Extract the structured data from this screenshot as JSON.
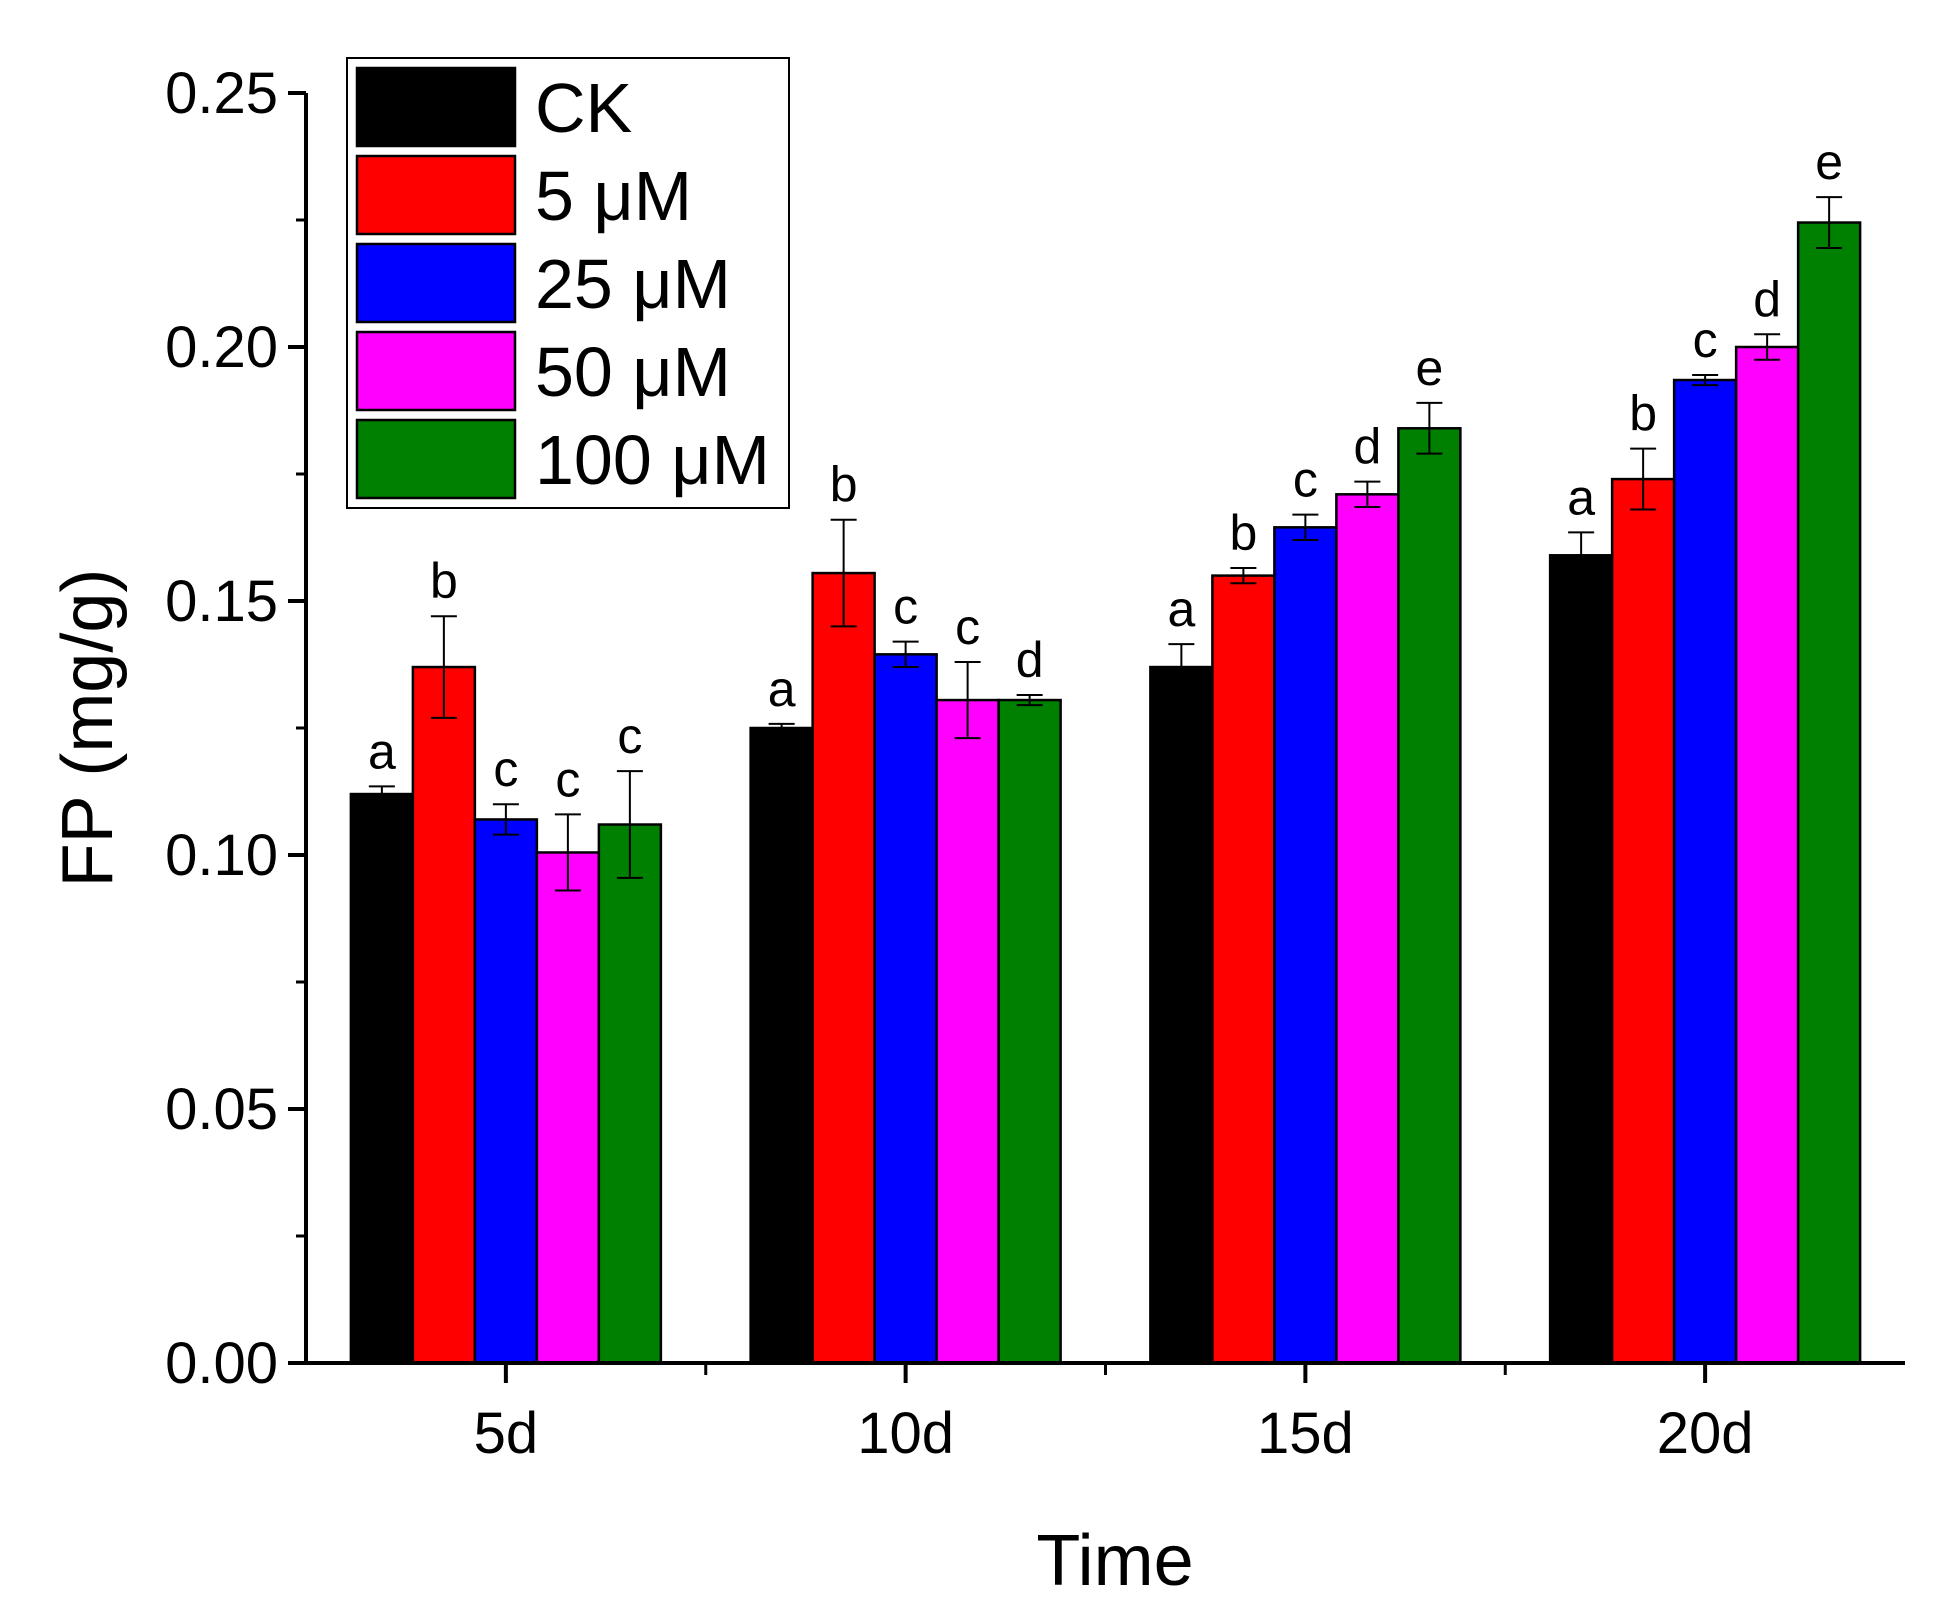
{
  "chart_data": {
    "type": "bar",
    "title": "",
    "xlabel": "Time",
    "ylabel": "FP (mg/g)",
    "ylim": [
      0,
      0.25
    ],
    "yticks": [
      "0.00",
      "0.05",
      "0.10",
      "0.15",
      "0.20",
      "0.25"
    ],
    "categories": [
      "5d",
      "10d",
      "15d",
      "20d"
    ],
    "legend_position": "top-left",
    "series": [
      {
        "name": "CK",
        "color": "#000000",
        "values": [
          0.112,
          0.125,
          0.137,
          0.159
        ],
        "errors": [
          0.0015,
          0.0008,
          0.0045,
          0.0045
        ],
        "labels": [
          "a",
          "a",
          "a",
          "a"
        ]
      },
      {
        "name": "5 μM",
        "color": "#ff0000",
        "values": [
          0.137,
          0.1555,
          0.155,
          0.174
        ],
        "errors": [
          0.01,
          0.0105,
          0.0015,
          0.006
        ],
        "labels": [
          "b",
          "b",
          "b",
          "b"
        ]
      },
      {
        "name": "25 μM",
        "color": "#0000ff",
        "values": [
          0.107,
          0.1395,
          0.1645,
          0.1935
        ],
        "errors": [
          0.003,
          0.0025,
          0.0025,
          0.001
        ],
        "labels": [
          "c",
          "c",
          "c",
          "c"
        ]
      },
      {
        "name": "50 μM",
        "color": "#ff00ff",
        "values": [
          0.1005,
          0.1305,
          0.171,
          0.2
        ],
        "errors": [
          0.0075,
          0.0075,
          0.0025,
          0.0025
        ],
        "labels": [
          "c",
          "c",
          "d",
          "d"
        ]
      },
      {
        "name": "100 μM",
        "color": "#008000",
        "values": [
          0.106,
          0.1305,
          0.184,
          0.2245
        ],
        "errors": [
          0.0105,
          0.001,
          0.005,
          0.005
        ],
        "labels": [
          "c",
          "d",
          "e",
          "e"
        ]
      }
    ]
  }
}
